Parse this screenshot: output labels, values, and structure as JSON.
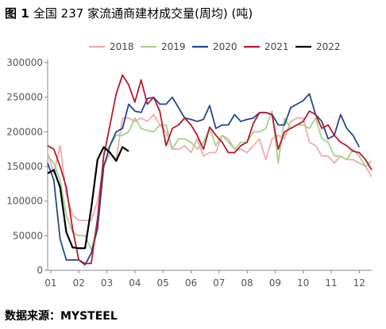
{
  "title_prefix": "图 1",
  "title_rest": "全国 237 家流通商建材成交量(周均) (吨)",
  "source": "数据来源：MYSTEEL",
  "chart_data": {
    "type": "line",
    "ylim": [
      0,
      300000
    ],
    "yticks": [
      0,
      50000,
      100000,
      150000,
      200000,
      250000,
      300000
    ],
    "xlim": [
      0,
      52
    ],
    "xticks": [
      {
        "label": "01",
        "pos": 0.5
      },
      {
        "label": "02",
        "pos": 5
      },
      {
        "label": "03",
        "pos": 9.5
      },
      {
        "label": "04",
        "pos": 14
      },
      {
        "label": "05",
        "pos": 18.5
      },
      {
        "label": "06",
        "pos": 23
      },
      {
        "label": "07",
        "pos": 27.5
      },
      {
        "label": "08",
        "pos": 32
      },
      {
        "label": "09",
        "pos": 36.5
      },
      {
        "label": "10",
        "pos": 41
      },
      {
        "label": "11",
        "pos": 45.5
      },
      {
        "label": "12",
        "pos": 50
      }
    ],
    "grid": false,
    "legend_position": "top",
    "series": [
      {
        "name": "2018",
        "color": "#f2aaaa",
        "x_start": 0,
        "values": [
          170000,
          140000,
          180000,
          110000,
          80000,
          72000,
          72000,
          72000,
          100000,
          150000,
          170000,
          160000,
          220000,
          220000,
          215000,
          220000,
          215000,
          225000,
          210000,
          200000,
          175000,
          175000,
          180000,
          170000,
          190000,
          165000,
          170000,
          170000,
          195000,
          190000,
          175000,
          175000,
          170000,
          180000,
          190000,
          160000,
          190000,
          195000,
          190000,
          215000,
          220000,
          220000,
          185000,
          180000,
          165000,
          165000,
          155000,
          165000,
          160000,
          160000,
          155000,
          150000,
          135000
        ]
      },
      {
        "name": "2019",
        "color": "#a6d18c",
        "x_start": 0,
        "values": [
          165000,
          155000,
          130000,
          80000,
          55000,
          50000,
          50000,
          30000,
          65000,
          170000,
          180000,
          195000,
          195000,
          200000,
          220000,
          205000,
          202000,
          200000,
          210000,
          210000,
          175000,
          190000,
          190000,
          185000,
          175000,
          185000,
          205000,
          180000,
          195000,
          185000,
          175000,
          185000,
          185000,
          200000,
          200000,
          205000,
          230000,
          155000,
          220000,
          205000,
          210000,
          210000,
          205000,
          220000,
          190000,
          185000,
          165000,
          165000,
          160000,
          175000,
          165000,
          150000,
          158000
        ]
      },
      {
        "name": "2020",
        "color": "#24478f",
        "x_start": 0,
        "values": [
          155000,
          130000,
          45000,
          15000,
          15000,
          15000,
          8000,
          25000,
          60000,
          150000,
          180000,
          200000,
          205000,
          240000,
          230000,
          228000,
          248000,
          250000,
          240000,
          240000,
          250000,
          235000,
          220000,
          218000,
          215000,
          218000,
          238000,
          205000,
          210000,
          210000,
          225000,
          215000,
          218000,
          220000,
          228000,
          228000,
          225000,
          210000,
          210000,
          235000,
          240000,
          245000,
          255000,
          225000,
          215000,
          190000,
          195000,
          225000,
          205000,
          195000,
          178000
        ]
      },
      {
        "name": "2021",
        "color": "#b81a2b",
        "x_start": 0,
        "values": [
          180000,
          175000,
          150000,
          120000,
          60000,
          15000,
          10000,
          10000,
          75000,
          165000,
          210000,
          255000,
          282000,
          268000,
          243000,
          275000,
          240000,
          250000,
          230000,
          180000,
          205000,
          210000,
          220000,
          210000,
          195000,
          175000,
          207000,
          195000,
          185000,
          170000,
          170000,
          180000,
          185000,
          212000,
          228000,
          228000,
          225000,
          175000,
          200000,
          205000,
          210000,
          215000,
          230000,
          225000,
          205000,
          210000,
          195000,
          185000,
          180000,
          172000,
          170000,
          160000,
          145000
        ]
      },
      {
        "name": "2022",
        "color": "#000000",
        "x_start": 0,
        "values": [
          140000,
          145000,
          120000,
          55000,
          33000,
          32000,
          32000,
          90000,
          160000,
          178000,
          170000,
          158000,
          178000,
          172000
        ]
      }
    ]
  }
}
